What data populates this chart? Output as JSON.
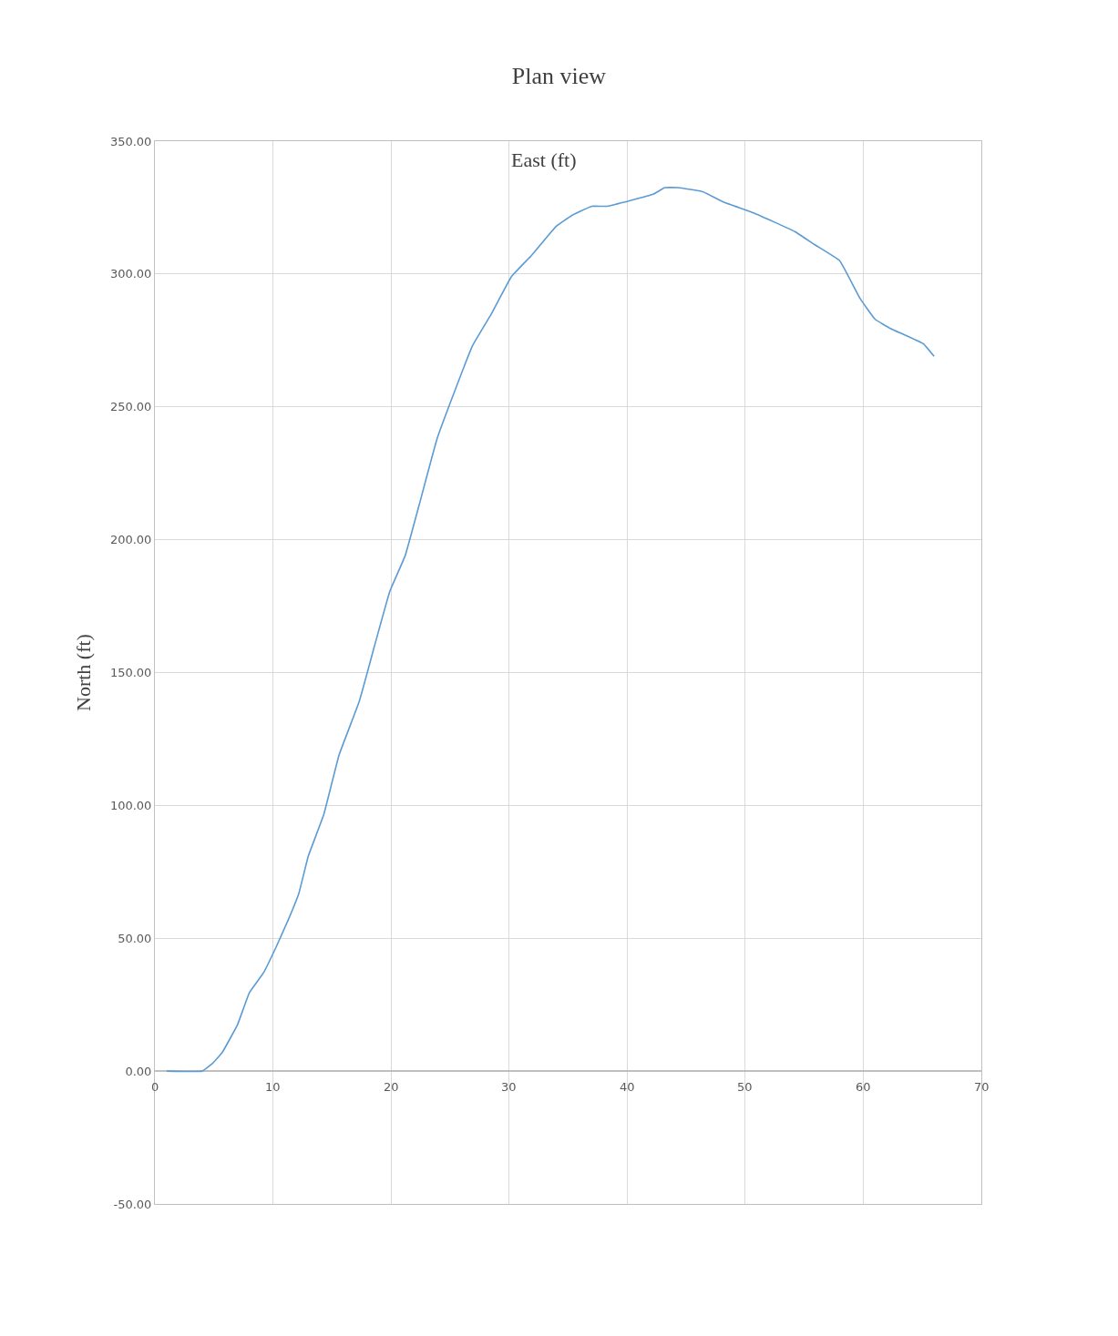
{
  "chart_data": {
    "type": "line",
    "title": "Plan view",
    "ylabel": "North (ft)",
    "annotations": [
      "East (ft)"
    ],
    "x": [
      1,
      4,
      4.9,
      5.7,
      7,
      8,
      9.2,
      10.3,
      11.3,
      12.2,
      13,
      14.3,
      15.6,
      17.3,
      18.6,
      19.9,
      21.2,
      22.5,
      23.9,
      25.4,
      26.9,
      28.5,
      30.2,
      31.9,
      34,
      35.3,
      37,
      38.3,
      42.2,
      43.2,
      44.3,
      46.4,
      48.2,
      50.7,
      54.2,
      55.9,
      58,
      59.7,
      61,
      62.3,
      65.1,
      66
    ],
    "series": [
      {
        "color": "#5b9bd5",
        "values": [
          0,
          0,
          3,
          7,
          17.5,
          29.5,
          37,
          47,
          57,
          67,
          81,
          96.5,
          119,
          139,
          160,
          180.6,
          194,
          215,
          238,
          256,
          273,
          285,
          299,
          307,
          318,
          322,
          325.5,
          325.5,
          330,
          332.5,
          332.5,
          331,
          327,
          323,
          316,
          311,
          305,
          291,
          283,
          279.5,
          273.7,
          269
        ]
      }
    ],
    "xlim": [
      0,
      70
    ],
    "xticks": [
      0,
      10,
      20,
      30,
      40,
      50,
      60,
      70
    ],
    "ylim": [
      -50,
      350
    ],
    "yticks": [
      {
        "value": -50,
        "label": "-50.00"
      },
      {
        "value": 0,
        "label": "0.00"
      },
      {
        "value": 50,
        "label": "50.00"
      },
      {
        "value": 100,
        "label": "100.00"
      },
      {
        "value": 150,
        "label": "150.00"
      },
      {
        "value": 200,
        "label": "200.00"
      },
      {
        "value": 250,
        "label": "250.00"
      },
      {
        "value": 300,
        "label": "300.00"
      },
      {
        "value": 350,
        "label": "350.00"
      }
    ],
    "grid": true,
    "legend": false,
    "marker": "none",
    "line_style": "solid"
  }
}
